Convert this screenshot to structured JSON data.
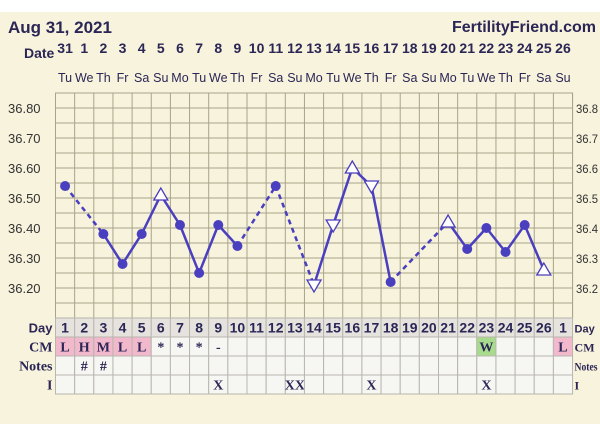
{
  "header": {
    "date": "Aug 31, 2021",
    "brand": "FertilityFriend.com"
  },
  "chart_data": {
    "type": "line",
    "row_labels": {
      "date": "Date",
      "day": "Day",
      "cm": "CM",
      "notes": "Notes",
      "i": "I"
    },
    "dates": [
      "31",
      "1",
      "2",
      "3",
      "4",
      "5",
      "6",
      "7",
      "8",
      "9",
      "10",
      "11",
      "12",
      "13",
      "14",
      "15",
      "16",
      "17",
      "18",
      "19",
      "20",
      "21",
      "22",
      "23",
      "24",
      "25",
      "26"
    ],
    "weekdays": [
      "Tu",
      "We",
      "Th",
      "Fr",
      "Sa",
      "Su",
      "Mo",
      "Tu",
      "We",
      "Th",
      "Fr",
      "Sa",
      "Su",
      "Mo",
      "Tu",
      "We",
      "Th",
      "Fr",
      "Sa",
      "Su",
      "Mo",
      "Tu",
      "We",
      "Th",
      "Fr",
      "Sa",
      "Su"
    ],
    "days": [
      "1",
      "2",
      "3",
      "4",
      "5",
      "6",
      "7",
      "8",
      "9",
      "10",
      "11",
      "12",
      "13",
      "14",
      "15",
      "16",
      "17",
      "18",
      "19",
      "20",
      "21",
      "22",
      "23",
      "24",
      "25",
      "26",
      "1"
    ],
    "cm": [
      "L",
      "H",
      "M",
      "L",
      "L",
      "*",
      "*",
      "*",
      "-",
      "",
      "",
      "",
      "",
      "",
      "",
      "",
      "",
      "",
      "",
      "",
      "",
      "",
      "W",
      "",
      "",
      "",
      "L"
    ],
    "notes": [
      "",
      "#",
      "#",
      "",
      "",
      "",
      "",
      "",
      "",
      "",
      "",
      "",
      "",
      "",
      "",
      "",
      "",
      "",
      "",
      "",
      "",
      "",
      "",
      "",
      "",
      "",
      ""
    ],
    "intercourse": [
      "",
      "",
      "",
      "",
      "",
      "",
      "",
      "",
      "X",
      "",
      "",
      "",
      "XX",
      "",
      "",
      "",
      "X",
      "",
      "",
      "",
      "",
      "",
      "X",
      "",
      "",
      "",
      ""
    ],
    "yticks": [
      "36.80",
      "36.70",
      "36.60",
      "36.50",
      "36.40",
      "36.30",
      "36.20"
    ],
    "ylim": [
      36.1,
      36.85
    ],
    "ylabel_right_visible": [
      "36.8",
      "36.7",
      "36.6",
      "36.5",
      "36.4",
      "36.3",
      "36.2"
    ],
    "points": [
      {
        "day": 1,
        "temp": 36.54,
        "marker": "dot"
      },
      {
        "day": 3,
        "temp": 36.38,
        "marker": "dot",
        "dashed_from_prev": true
      },
      {
        "day": 4,
        "temp": 36.28,
        "marker": "dot"
      },
      {
        "day": 5,
        "temp": 36.38,
        "marker": "dot"
      },
      {
        "day": 6,
        "temp": 36.51,
        "marker": "open-up"
      },
      {
        "day": 7,
        "temp": 36.41,
        "marker": "dot"
      },
      {
        "day": 8,
        "temp": 36.25,
        "marker": "dot"
      },
      {
        "day": 9,
        "temp": 36.41,
        "marker": "dot"
      },
      {
        "day": 10,
        "temp": 36.34,
        "marker": "dot"
      },
      {
        "day": 12,
        "temp": 36.54,
        "marker": "dot",
        "dashed_from_prev": true
      },
      {
        "day": 14,
        "temp": 36.21,
        "marker": "open-down",
        "dashed_from_prev": true
      },
      {
        "day": 15,
        "temp": 36.41,
        "marker": "open-down"
      },
      {
        "day": 16,
        "temp": 36.6,
        "marker": "open-up"
      },
      {
        "day": 17,
        "temp": 36.54,
        "marker": "open-down"
      },
      {
        "day": 18,
        "temp": 36.22,
        "marker": "dot"
      },
      {
        "day": 21,
        "temp": 36.42,
        "marker": "open-up",
        "dashed_from_prev": true
      },
      {
        "day": 22,
        "temp": 36.33,
        "marker": "dot"
      },
      {
        "day": 23,
        "temp": 36.4,
        "marker": "dot"
      },
      {
        "day": 24,
        "temp": 36.32,
        "marker": "dot"
      },
      {
        "day": 25,
        "temp": 36.41,
        "marker": "dot"
      },
      {
        "day": 26,
        "temp": 36.26,
        "marker": "open-up"
      }
    ],
    "colors": {
      "line": "#4a3fbf",
      "cm_pink": "#f2b8cc",
      "cm_green": "#a8dc8c",
      "bg": "#f8f3dc",
      "grid": "#a8a48a",
      "text": "#2b2656"
    }
  }
}
